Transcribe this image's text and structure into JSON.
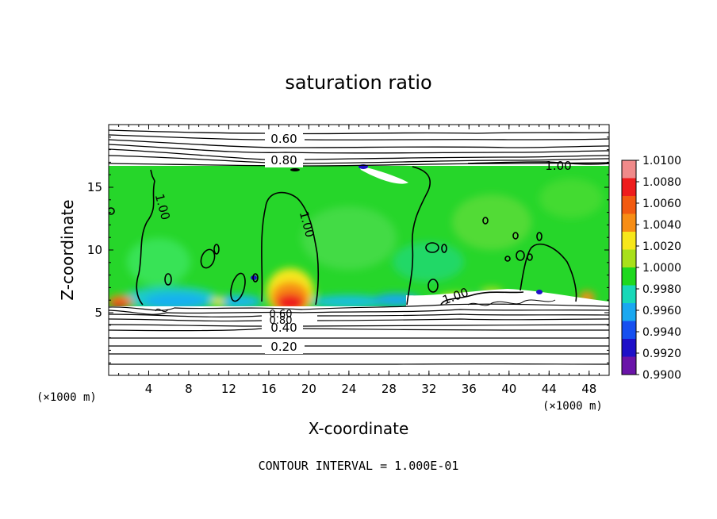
{
  "chart_data": {
    "type": "heatmap",
    "title": "saturation ratio",
    "xlabel": "X-coordinate",
    "ylabel": "Z-coordinate",
    "x_unit": "(×1000 m)",
    "xlim": [
      0,
      50
    ],
    "ylim": [
      0,
      20
    ],
    "x_ticks": [
      "4",
      "8",
      "12",
      "16",
      "20",
      "24",
      "28",
      "32",
      "36",
      "40",
      "44",
      "48"
    ],
    "y_ticks": [
      "5",
      "10",
      "15"
    ],
    "colorbar": {
      "range": [
        0.99,
        1.01
      ],
      "ticks": [
        "1.0100",
        "1.0080",
        "1.0060",
        "1.0040",
        "1.0020",
        "1.0000",
        "0.9980",
        "0.9960",
        "0.9940",
        "0.9920",
        "0.9900"
      ],
      "colors": [
        "#f08a8a",
        "#ee1c1c",
        "#f25a10",
        "#f78d14",
        "#f7e71a",
        "#a8e01a",
        "#1ed81e",
        "#18d8b8",
        "#1aa8f0",
        "#1650f0",
        "#1e10c8",
        "#6a14a8"
      ]
    },
    "contour_interval": "CONTOUR INTERVAL = 1.000E-01",
    "contour_labels": [
      "0.60",
      "0.80",
      "1.00",
      "1.00",
      "1.00",
      "1.00",
      "0.40",
      "0.20",
      "0.60",
      "0.80"
    ],
    "cloud_layer_z": [
      5.5,
      16.8
    ]
  }
}
